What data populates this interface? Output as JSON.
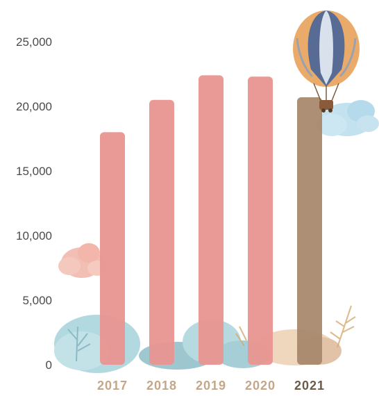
{
  "chart_data": {
    "type": "bar",
    "title": "",
    "xlabel": "",
    "ylabel": "",
    "categories": [
      "2017",
      "2018",
      "2019",
      "2020",
      "2021"
    ],
    "values": [
      18000,
      20500,
      22400,
      22300,
      20700
    ],
    "ylim": [
      0,
      25000
    ],
    "yticks": [
      "0",
      "5,000",
      "10,000",
      "15,000",
      "20,000",
      "25,000"
    ],
    "grid": false,
    "legend": "none",
    "colors": {
      "bar": "#e89590",
      "highlight_bar": "#a8896d",
      "label": "#c4a688",
      "highlight_label": "#6b5a4a"
    },
    "highlight_index": 4
  },
  "decorations": {
    "balloon": "hot-air-balloon-icon",
    "clouds": "cloud-icon",
    "trees": "tree-icon",
    "leaves": "leaf-icon"
  }
}
